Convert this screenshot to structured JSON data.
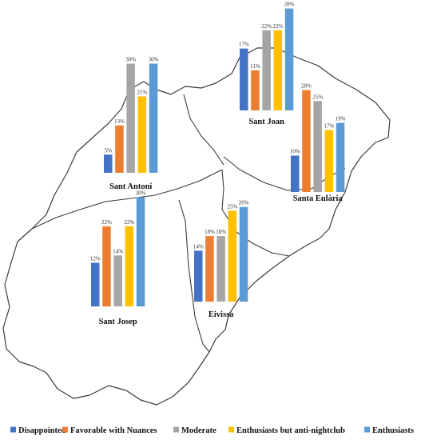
{
  "chart_data": {
    "type": "bar",
    "categories": [
      "Disappointed",
      "Favorable with Nuances",
      "Moderate",
      "Enthusiasts but anti-nightclub",
      "Enthusiasts"
    ],
    "colors": [
      "#4472C4",
      "#ED7D31",
      "#A5A5A5",
      "#FFC000",
      "#5B9BD5"
    ],
    "unit": "%",
    "legend": "bottom",
    "groups": [
      {
        "name": "Sant Antoni",
        "values": [
          5,
          13,
          30,
          21,
          30
        ]
      },
      {
        "name": "Sant Joan",
        "values": [
          17,
          11,
          22,
          22,
          28
        ]
      },
      {
        "name": "Santa Eulària",
        "values": [
          10,
          28,
          25,
          17,
          19
        ]
      },
      {
        "name": "Sant Josep",
        "values": [
          12,
          22,
          14,
          22,
          30
        ]
      },
      {
        "name": "Eivissa",
        "values": [
          14,
          18,
          18,
          25,
          26
        ]
      }
    ]
  }
}
